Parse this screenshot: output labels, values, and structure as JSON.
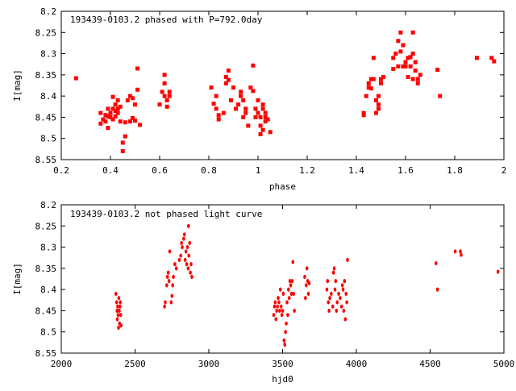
{
  "chart_data": [
    {
      "type": "scatter",
      "title": "193439-0103.2 phased with P=792.0day",
      "xlabel": "phase",
      "ylabel": "I[mag]",
      "xlim": [
        0.2,
        2.0
      ],
      "ylim": [
        8.2,
        8.55
      ],
      "y_inverted": true,
      "x_ticks": [
        0.2,
        0.4,
        0.6,
        0.8,
        1.0,
        1.2,
        1.4,
        1.6,
        1.8,
        2.0
      ],
      "x_tick_labels": [
        "0.2",
        "0.4",
        "0.6",
        "0.8",
        "1",
        "1.2",
        "1.4",
        "1.6",
        "1.8",
        "2"
      ],
      "y_ticks": [
        8.2,
        8.25,
        8.3,
        8.35,
        8.4,
        8.45,
        8.5,
        8.55
      ],
      "y_tick_labels": [
        "8.2",
        "8.25",
        "8.3",
        "8.35",
        "8.4",
        "8.45",
        "8.5",
        "8.55"
      ],
      "grid": false,
      "marker_color": "#ff0000",
      "points": [
        [
          0.26,
          8.358
        ],
        [
          0.36,
          8.465
        ],
        [
          0.36,
          8.44
        ],
        [
          0.37,
          8.455
        ],
        [
          0.38,
          8.445
        ],
        [
          0.38,
          8.46
        ],
        [
          0.39,
          8.43
        ],
        [
          0.39,
          8.448
        ],
        [
          0.39,
          8.475
        ],
        [
          0.4,
          8.44
        ],
        [
          0.4,
          8.45
        ],
        [
          0.41,
          8.43
        ],
        [
          0.41,
          8.455
        ],
        [
          0.41,
          8.402
        ],
        [
          0.42,
          8.435
        ],
        [
          0.42,
          8.448
        ],
        [
          0.42,
          8.42
        ],
        [
          0.43,
          8.44
        ],
        [
          0.43,
          8.43
        ],
        [
          0.43,
          8.41
        ],
        [
          0.44,
          8.425
        ],
        [
          0.44,
          8.46
        ],
        [
          0.45,
          8.53
        ],
        [
          0.45,
          8.51
        ],
        [
          0.46,
          8.462
        ],
        [
          0.46,
          8.495
        ],
        [
          0.47,
          8.41
        ],
        [
          0.48,
          8.46
        ],
        [
          0.48,
          8.4
        ],
        [
          0.49,
          8.452
        ],
        [
          0.49,
          8.405
        ],
        [
          0.5,
          8.42
        ],
        [
          0.5,
          8.458
        ],
        [
          0.51,
          8.385
        ],
        [
          0.51,
          8.335
        ],
        [
          0.52,
          8.468
        ],
        [
          0.6,
          8.42
        ],
        [
          0.61,
          8.39
        ],
        [
          0.62,
          8.4
        ],
        [
          0.62,
          8.35
        ],
        [
          0.62,
          8.37
        ],
        [
          0.63,
          8.41
        ],
        [
          0.63,
          8.425
        ],
        [
          0.64,
          8.4
        ],
        [
          0.64,
          8.39
        ],
        [
          0.81,
          8.38
        ],
        [
          0.82,
          8.418
        ],
        [
          0.83,
          8.43
        ],
        [
          0.83,
          8.4
        ],
        [
          0.84,
          8.455
        ],
        [
          0.84,
          8.445
        ],
        [
          0.86,
          8.44
        ],
        [
          0.87,
          8.37
        ],
        [
          0.87,
          8.355
        ],
        [
          0.88,
          8.34
        ],
        [
          0.88,
          8.362
        ],
        [
          0.89,
          8.41
        ],
        [
          0.9,
          8.38
        ],
        [
          0.91,
          8.43
        ],
        [
          0.92,
          8.42
        ],
        [
          0.93,
          8.4
        ],
        [
          0.93,
          8.39
        ],
        [
          0.94,
          8.41
        ],
        [
          0.94,
          8.45
        ],
        [
          0.95,
          8.44
        ],
        [
          0.95,
          8.43
        ],
        [
          0.96,
          8.47
        ],
        [
          0.97,
          8.38
        ],
        [
          0.98,
          8.388
        ],
        [
          0.98,
          8.328
        ],
        [
          0.99,
          8.43
        ],
        [
          0.99,
          8.45
        ],
        [
          1.0,
          8.41
        ],
        [
          1.0,
          8.44
        ],
        [
          1.01,
          8.45
        ],
        [
          1.01,
          8.47
        ],
        [
          1.01,
          8.49
        ],
        [
          1.02,
          8.42
        ],
        [
          1.02,
          8.43
        ],
        [
          1.02,
          8.48
        ],
        [
          1.03,
          8.45
        ],
        [
          1.03,
          8.44
        ],
        [
          1.03,
          8.46
        ],
        [
          1.04,
          8.455
        ],
        [
          1.05,
          8.485
        ],
        [
          1.43,
          8.44
        ],
        [
          1.43,
          8.445
        ],
        [
          1.44,
          8.4
        ],
        [
          1.45,
          8.38
        ],
        [
          1.45,
          8.37
        ],
        [
          1.46,
          8.36
        ],
        [
          1.46,
          8.382
        ],
        [
          1.47,
          8.36
        ],
        [
          1.47,
          8.31
        ],
        [
          1.48,
          8.41
        ],
        [
          1.48,
          8.44
        ],
        [
          1.49,
          8.42
        ],
        [
          1.49,
          8.43
        ],
        [
          1.49,
          8.4
        ],
        [
          1.5,
          8.36
        ],
        [
          1.5,
          8.37
        ],
        [
          1.51,
          8.355
        ],
        [
          1.55,
          8.336
        ],
        [
          1.55,
          8.31
        ],
        [
          1.56,
          8.3
        ],
        [
          1.57,
          8.33
        ],
        [
          1.57,
          8.27
        ],
        [
          1.58,
          8.25
        ],
        [
          1.58,
          8.295
        ],
        [
          1.59,
          8.33
        ],
        [
          1.59,
          8.28
        ],
        [
          1.6,
          8.32
        ],
        [
          1.6,
          8.33
        ],
        [
          1.61,
          8.31
        ],
        [
          1.61,
          8.355
        ],
        [
          1.62,
          8.308
        ],
        [
          1.62,
          8.33
        ],
        [
          1.63,
          8.3
        ],
        [
          1.63,
          8.25
        ],
        [
          1.63,
          8.36
        ],
        [
          1.64,
          8.34
        ],
        [
          1.64,
          8.32
        ],
        [
          1.65,
          8.36
        ],
        [
          1.65,
          8.37
        ],
        [
          1.66,
          8.35
        ],
        [
          1.73,
          8.338
        ],
        [
          1.74,
          8.4
        ],
        [
          1.89,
          8.31
        ],
        [
          1.95,
          8.31
        ],
        [
          1.96,
          8.318
        ]
      ]
    },
    {
      "type": "scatter",
      "title": "193439-0103.2 not phased light curve",
      "xlabel": "hjd0",
      "ylabel": "I[mag]",
      "xlim": [
        2000,
        5000
      ],
      "ylim": [
        8.2,
        8.55
      ],
      "y_inverted": true,
      "x_ticks": [
        2000,
        2500,
        3000,
        3500,
        4000,
        4500,
        5000
      ],
      "x_tick_labels": [
        "2000",
        "2500",
        "3000",
        "3500",
        "4000",
        "4500",
        "5000"
      ],
      "y_ticks": [
        8.2,
        8.25,
        8.3,
        8.35,
        8.4,
        8.45,
        8.5,
        8.55
      ],
      "y_tick_labels": [
        "8.2",
        "8.25",
        "8.3",
        "8.35",
        "8.4",
        "8.45",
        "8.5",
        "8.55"
      ],
      "grid": false,
      "marker_color": "#ff0000",
      "points": [
        [
          2370,
          8.41
        ],
        [
          2375,
          8.43
        ],
        [
          2378,
          8.45
        ],
        [
          2380,
          8.47
        ],
        [
          2382,
          8.44
        ],
        [
          2385,
          8.46
        ],
        [
          2388,
          8.49
        ],
        [
          2390,
          8.42
        ],
        [
          2393,
          8.45
        ],
        [
          2395,
          8.48
        ],
        [
          2398,
          8.44
        ],
        [
          2400,
          8.43
        ],
        [
          2403,
          8.46
        ],
        [
          2405,
          8.485
        ],
        [
          2700,
          8.44
        ],
        [
          2705,
          8.43
        ],
        [
          2715,
          8.39
        ],
        [
          2720,
          8.37
        ],
        [
          2725,
          8.36
        ],
        [
          2730,
          8.38
        ],
        [
          2735,
          8.31
        ],
        [
          2745,
          8.43
        ],
        [
          2750,
          8.415
        ],
        [
          2755,
          8.39
        ],
        [
          2760,
          8.37
        ],
        [
          2770,
          8.34
        ],
        [
          2780,
          8.35
        ],
        [
          2800,
          8.33
        ],
        [
          2810,
          8.32
        ],
        [
          2815,
          8.29
        ],
        [
          2820,
          8.3
        ],
        [
          2830,
          8.28
        ],
        [
          2835,
          8.27
        ],
        [
          2840,
          8.33
        ],
        [
          2845,
          8.31
        ],
        [
          2850,
          8.34
        ],
        [
          2855,
          8.3
        ],
        [
          2860,
          8.35
        ],
        [
          2862,
          8.25
        ],
        [
          2865,
          8.32
        ],
        [
          2870,
          8.29
        ],
        [
          2875,
          8.36
        ],
        [
          2880,
          8.34
        ],
        [
          2885,
          8.37
        ],
        [
          3440,
          8.46
        ],
        [
          3445,
          8.44
        ],
        [
          3450,
          8.43
        ],
        [
          3455,
          8.47
        ],
        [
          3460,
          8.45
        ],
        [
          3465,
          8.44
        ],
        [
          3470,
          8.42
        ],
        [
          3475,
          8.43
        ],
        [
          3480,
          8.45
        ],
        [
          3485,
          8.4
        ],
        [
          3490,
          8.44
        ],
        [
          3495,
          8.46
        ],
        [
          3500,
          8.45
        ],
        [
          3505,
          8.41
        ],
        [
          3510,
          8.52
        ],
        [
          3515,
          8.53
        ],
        [
          3520,
          8.5
        ],
        [
          3525,
          8.48
        ],
        [
          3530,
          8.43
        ],
        [
          3535,
          8.46
        ],
        [
          3540,
          8.4
        ],
        [
          3545,
          8.42
        ],
        [
          3550,
          8.38
        ],
        [
          3555,
          8.39
        ],
        [
          3560,
          8.41
        ],
        [
          3565,
          8.38
        ],
        [
          3570,
          8.335
        ],
        [
          3575,
          8.41
        ],
        [
          3580,
          8.45
        ],
        [
          3650,
          8.37
        ],
        [
          3655,
          8.42
        ],
        [
          3660,
          8.39
        ],
        [
          3665,
          8.35
        ],
        [
          3670,
          8.38
        ],
        [
          3675,
          8.41
        ],
        [
          3680,
          8.385
        ],
        [
          3800,
          8.4
        ],
        [
          3805,
          8.38
        ],
        [
          3810,
          8.43
        ],
        [
          3815,
          8.45
        ],
        [
          3820,
          8.42
        ],
        [
          3830,
          8.41
        ],
        [
          3840,
          8.44
        ],
        [
          3845,
          8.36
        ],
        [
          3850,
          8.35
        ],
        [
          3855,
          8.4
        ],
        [
          3860,
          8.38
        ],
        [
          3865,
          8.45
        ],
        [
          3870,
          8.43
        ],
        [
          3880,
          8.41
        ],
        [
          3890,
          8.42
        ],
        [
          3900,
          8.44
        ],
        [
          3905,
          8.39
        ],
        [
          3910,
          8.4
        ],
        [
          3915,
          8.45
        ],
        [
          3920,
          8.38
        ],
        [
          3925,
          8.47
        ],
        [
          3930,
          8.41
        ],
        [
          3935,
          8.43
        ],
        [
          3940,
          8.33
        ],
        [
          4540,
          8.338
        ],
        [
          4550,
          8.4
        ],
        [
          4670,
          8.31
        ],
        [
          4705,
          8.31
        ],
        [
          4710,
          8.318
        ],
        [
          4960,
          8.358
        ]
      ]
    }
  ]
}
